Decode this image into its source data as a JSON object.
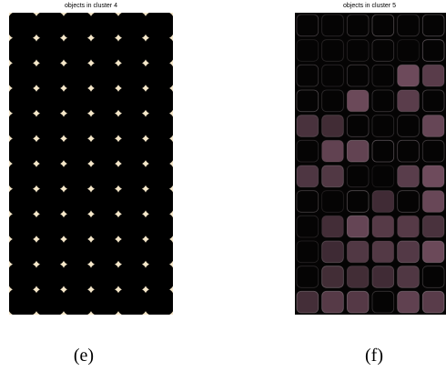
{
  "panels": [
    {
      "title": "objects in cluster 4",
      "caption": "(e)"
    },
    {
      "title": "objects in cluster 5",
      "caption": "(f)"
    }
  ],
  "colors": {
    "background": "#ffffff",
    "cluster4_cells": "#000000",
    "cluster4_gaps": "#f4e6c8",
    "cluster5_base": "#050404",
    "cluster5_highlight": "#6e4b5c",
    "cluster5_edges": "#a89aa2"
  },
  "icons": {
    "panel_e": "cluster-4-mask-image",
    "panel_f": "cluster-5-mask-image"
  }
}
